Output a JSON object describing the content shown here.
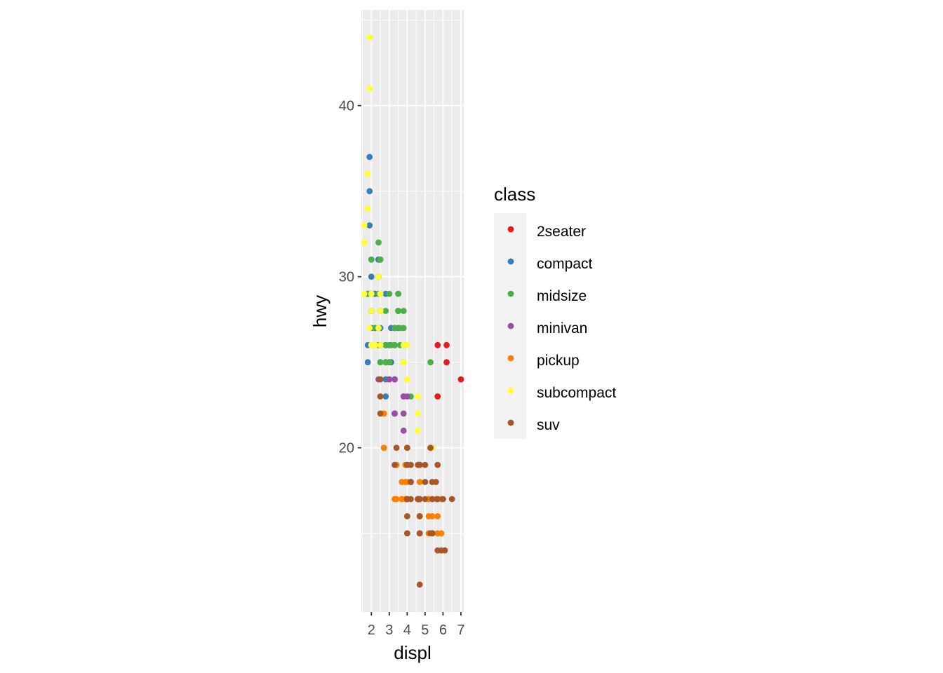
{
  "chart_data": {
    "type": "scatter",
    "xlabel": "displ",
    "ylabel": "hwy",
    "xlim": [
      1.44,
      7.16
    ],
    "ylim": [
      10.4,
      45.6
    ],
    "x_ticks": [
      2,
      3,
      4,
      5,
      6,
      7
    ],
    "y_ticks": [
      20,
      30,
      40
    ],
    "grid": true,
    "legend": {
      "title": "class",
      "position": "right"
    },
    "series": [
      {
        "name": "2seater",
        "color": "#E41A1C",
        "points": [
          [
            5.7,
            26
          ],
          [
            5.7,
            23
          ],
          [
            6.2,
            26
          ],
          [
            6.2,
            25
          ],
          [
            7.0,
            24
          ]
        ]
      },
      {
        "name": "compact",
        "color": "#377EB8",
        "points": [
          [
            1.8,
            29
          ],
          [
            1.8,
            29
          ],
          [
            2.0,
            31
          ],
          [
            2.0,
            30
          ],
          [
            2.8,
            26
          ],
          [
            2.8,
            26
          ],
          [
            3.1,
            27
          ],
          [
            1.8,
            26
          ],
          [
            1.8,
            25
          ],
          [
            2.0,
            28
          ],
          [
            2.0,
            27
          ],
          [
            2.8,
            25
          ],
          [
            2.8,
            25
          ],
          [
            3.1,
            25
          ],
          [
            3.1,
            25
          ],
          [
            2.2,
            26
          ],
          [
            2.2,
            27
          ],
          [
            2.4,
            31
          ],
          [
            2.4,
            31
          ],
          [
            3.0,
            26
          ],
          [
            3.0,
            26
          ],
          [
            3.3,
            27
          ],
          [
            1.8,
            29
          ],
          [
            1.8,
            29
          ],
          [
            2.0,
            28
          ],
          [
            2.0,
            29
          ],
          [
            2.8,
            29
          ],
          [
            1.9,
            37
          ],
          [
            1.9,
            35
          ],
          [
            1.9,
            33
          ],
          [
            2.0,
            29
          ],
          [
            2.0,
            29
          ],
          [
            2.5,
            31
          ],
          [
            2.5,
            27
          ],
          [
            2.5,
            25
          ],
          [
            2.8,
            24
          ],
          [
            2.2,
            29
          ],
          [
            2.2,
            29
          ],
          [
            2.4,
            30
          ],
          [
            2.4,
            31
          ],
          [
            3.0,
            24
          ],
          [
            2.8,
            23
          ],
          [
            1.8,
            29
          ],
          [
            2.0,
            28
          ],
          [
            2.5,
            26
          ],
          [
            2.2,
            27
          ],
          [
            3.5,
            27
          ],
          [
            3.3,
            27
          ]
        ]
      },
      {
        "name": "midsize",
        "color": "#4DAF4A",
        "points": [
          [
            2.8,
            26
          ],
          [
            3.1,
            26
          ],
          [
            4.2,
            23
          ],
          [
            5.3,
            25
          ],
          [
            2.4,
            27
          ],
          [
            2.4,
            30
          ],
          [
            2.5,
            28
          ],
          [
            2.5,
            31
          ],
          [
            3.3,
            27
          ],
          [
            3.3,
            26
          ],
          [
            3.3,
            26
          ],
          [
            3.8,
            26
          ],
          [
            3.8,
            25
          ],
          [
            3.8,
            27
          ],
          [
            2.0,
            31
          ],
          [
            2.4,
            32
          ],
          [
            2.4,
            30
          ],
          [
            3.5,
            28
          ],
          [
            3.5,
            29
          ],
          [
            2.5,
            28
          ],
          [
            2.5,
            26
          ],
          [
            3.0,
            26
          ],
          [
            3.0,
            29
          ],
          [
            3.5,
            29
          ],
          [
            1.8,
            29
          ],
          [
            2.0,
            26
          ],
          [
            2.8,
            26
          ],
          [
            3.6,
            26
          ],
          [
            3.6,
            27
          ],
          [
            2.4,
            29
          ],
          [
            2.4,
            29
          ],
          [
            3.3,
            26
          ],
          [
            2.8,
            25
          ],
          [
            2.2,
            27
          ],
          [
            2.4,
            26
          ],
          [
            3.5,
            28
          ],
          [
            3.5,
            28
          ],
          [
            3.8,
            26
          ],
          [
            3.8,
            28
          ],
          [
            2.5,
            25
          ],
          [
            2.5,
            26
          ],
          [
            3.0,
            25
          ],
          [
            3.0,
            25
          ],
          [
            2.8,
            28
          ],
          [
            3.3,
            26
          ]
        ]
      },
      {
        "name": "minivan",
        "color": "#984EA3",
        "points": [
          [
            2.4,
            24
          ],
          [
            3.0,
            24
          ],
          [
            3.3,
            22
          ],
          [
            3.3,
            22
          ],
          [
            3.3,
            24
          ],
          [
            3.3,
            24
          ],
          [
            3.3,
            22
          ],
          [
            3.8,
            23
          ],
          [
            3.8,
            23
          ],
          [
            3.8,
            22
          ],
          [
            4.0,
            23
          ],
          [
            3.8,
            21
          ]
        ]
      },
      {
        "name": "pickup",
        "color": "#FF7F00",
        "points": [
          [
            2.7,
            20
          ],
          [
            2.7,
            22
          ],
          [
            3.7,
            17
          ],
          [
            3.7,
            17
          ],
          [
            3.9,
            17
          ],
          [
            3.9,
            17
          ],
          [
            4.7,
            17
          ],
          [
            4.7,
            17
          ],
          [
            4.7,
            16
          ],
          [
            5.2,
            17
          ],
          [
            5.2,
            15
          ],
          [
            4.7,
            16
          ],
          [
            4.7,
            17
          ],
          [
            5.7,
            17
          ],
          [
            5.9,
            17
          ],
          [
            4.6,
            17
          ],
          [
            4.6,
            17
          ],
          [
            5.4,
            15
          ],
          [
            5.4,
            15
          ],
          [
            2.7,
            22
          ],
          [
            2.7,
            20
          ],
          [
            4.0,
            19
          ],
          [
            4.0,
            18
          ],
          [
            4.7,
            17
          ],
          [
            4.7,
            18
          ],
          [
            5.7,
            15
          ],
          [
            5.7,
            16
          ],
          [
            5.4,
            15
          ],
          [
            2.7,
            22
          ],
          [
            3.4,
            19
          ],
          [
            3.4,
            17
          ],
          [
            4.0,
            20
          ],
          [
            4.0,
            20
          ],
          [
            4.7,
            19
          ],
          [
            4.7,
            17
          ],
          [
            5.4,
            15
          ],
          [
            5.4,
            20
          ],
          [
            3.9,
            18
          ],
          [
            4.7,
            16
          ],
          [
            5.9,
            15
          ],
          [
            3.7,
            18
          ],
          [
            4.0,
            19
          ],
          [
            4.2,
            18
          ],
          [
            5.2,
            16
          ],
          [
            5.4,
            16
          ],
          [
            5.6,
            17
          ],
          [
            5.2,
            17
          ],
          [
            3.3,
            17
          ],
          [
            3.9,
            19
          ],
          [
            5.2,
            17
          ]
        ]
      },
      {
        "name": "subcompact",
        "color": "#FFFF33",
        "points": [
          [
            3.8,
            26
          ],
          [
            3.8,
            25
          ],
          [
            4.0,
            26
          ],
          [
            4.0,
            24
          ],
          [
            4.6,
            21
          ],
          [
            4.6,
            22
          ],
          [
            4.6,
            23
          ],
          [
            5.4,
            20
          ],
          [
            1.6,
            33
          ],
          [
            1.6,
            32
          ],
          [
            1.6,
            32
          ],
          [
            1.6,
            29
          ],
          [
            1.6,
            32
          ],
          [
            1.8,
            34
          ],
          [
            1.8,
            36
          ],
          [
            1.8,
            36
          ],
          [
            2.0,
            29
          ],
          [
            2.0,
            26
          ],
          [
            2.4,
            27
          ],
          [
            2.4,
            30
          ],
          [
            2.0,
            28
          ],
          [
            2.0,
            26
          ],
          [
            1.9,
            44
          ],
          [
            1.9,
            41
          ],
          [
            2.0,
            29
          ],
          [
            2.0,
            26
          ],
          [
            2.5,
            28
          ],
          [
            2.5,
            29
          ],
          [
            1.9,
            27
          ],
          [
            2.0,
            26
          ],
          [
            2.5,
            29
          ],
          [
            2.0,
            26
          ],
          [
            2.2,
            26
          ],
          [
            2.2,
            26
          ],
          [
            2.5,
            26
          ]
        ]
      },
      {
        "name": "suv",
        "color": "#A65628",
        "points": [
          [
            5.3,
            20
          ],
          [
            5.3,
            15
          ],
          [
            5.3,
            20
          ],
          [
            5.7,
            17
          ],
          [
            6.0,
            17
          ],
          [
            6.5,
            17
          ],
          [
            5.7,
            14
          ],
          [
            5.9,
            14
          ],
          [
            4.7,
            12
          ],
          [
            4.7,
            15
          ],
          [
            4.7,
            19
          ],
          [
            5.4,
            15
          ],
          [
            4.0,
            17
          ],
          [
            4.2,
            18
          ],
          [
            5.4,
            18
          ],
          [
            5.0,
            17
          ],
          [
            2.5,
            23
          ],
          [
            2.5,
            22
          ],
          [
            4.0,
            19
          ],
          [
            4.0,
            17
          ],
          [
            4.6,
            17
          ],
          [
            5.0,
            18
          ],
          [
            4.2,
            19
          ],
          [
            4.2,
            18
          ],
          [
            4.7,
            17
          ],
          [
            4.0,
            15
          ],
          [
            4.7,
            15
          ],
          [
            4.7,
            19
          ],
          [
            5.0,
            19
          ],
          [
            5.7,
            19
          ],
          [
            6.1,
            14
          ],
          [
            5.4,
            15
          ],
          [
            5.4,
            17
          ],
          [
            2.5,
            24
          ],
          [
            4.6,
            19
          ],
          [
            4.0,
            17
          ],
          [
            4.0,
            17
          ],
          [
            3.3,
            19
          ],
          [
            3.4,
            20
          ],
          [
            4.0,
            16
          ],
          [
            4.6,
            17
          ],
          [
            4.7,
            17
          ],
          [
            5.6,
            18
          ],
          [
            4.0,
            20
          ],
          [
            4.0,
            19
          ],
          [
            4.7,
            16
          ],
          [
            4.7,
            15
          ],
          [
            4.2,
            17
          ]
        ]
      }
    ]
  }
}
